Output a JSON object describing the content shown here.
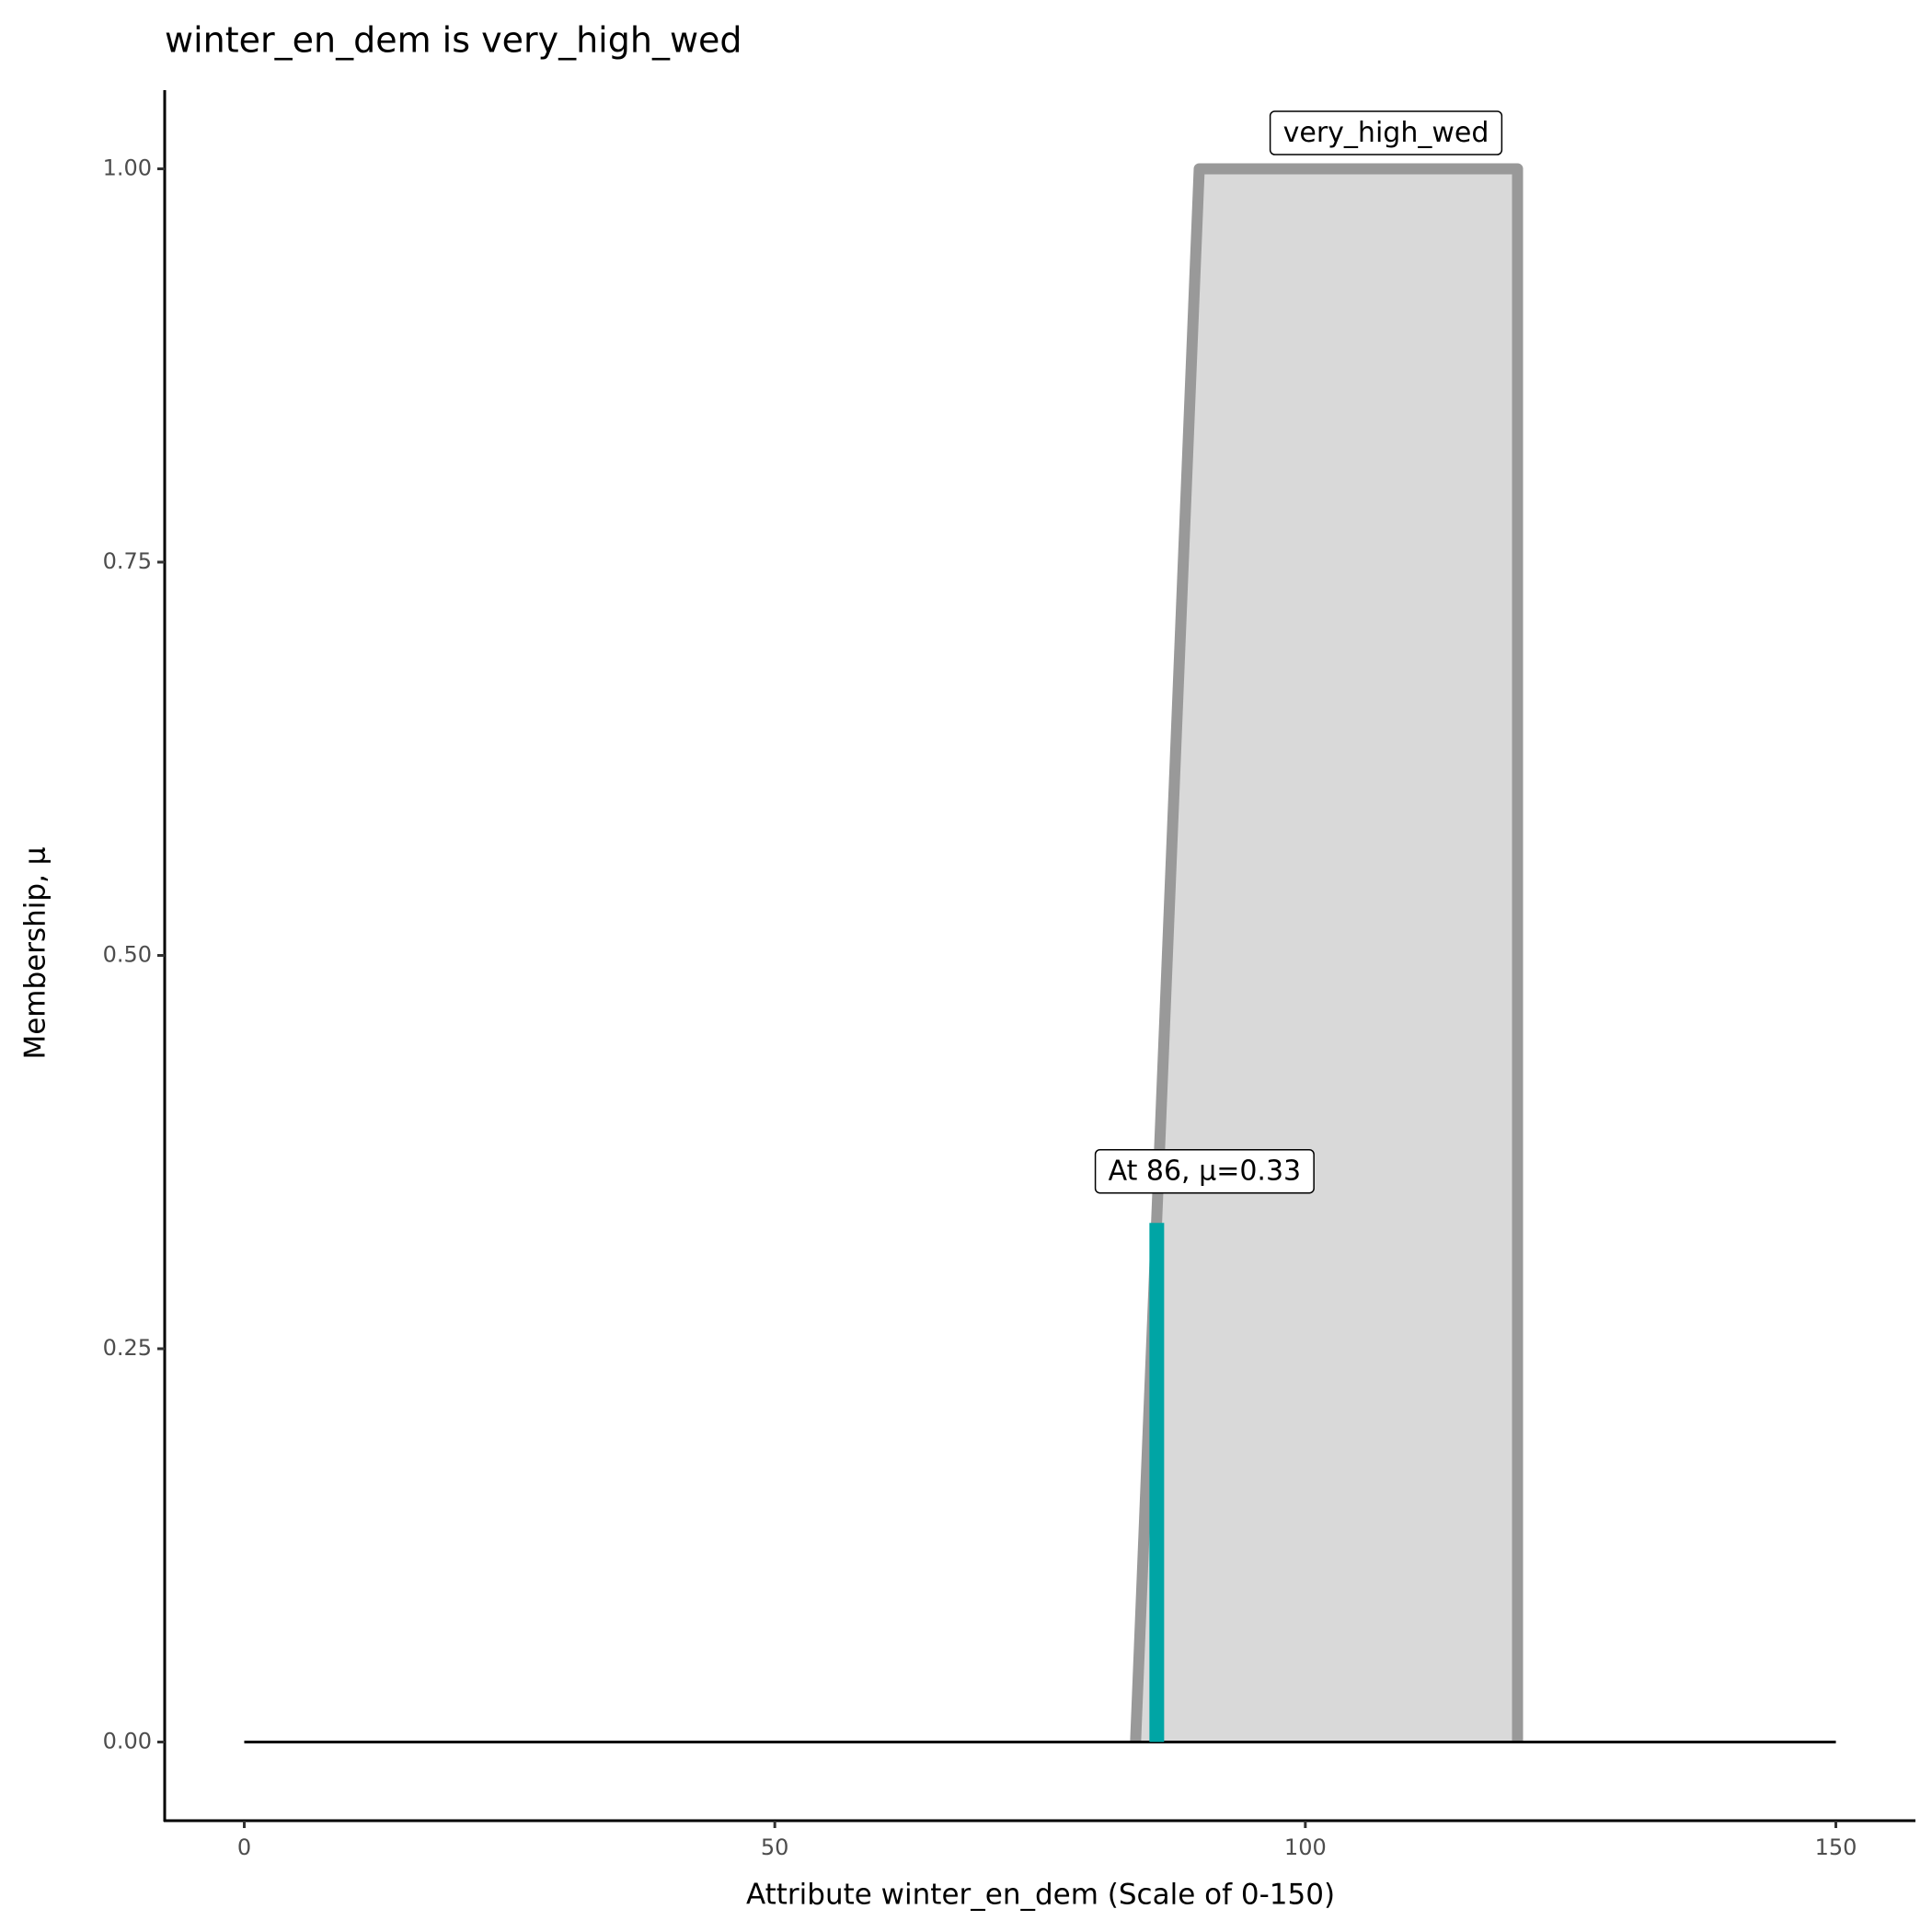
{
  "chart_data": {
    "type": "area",
    "title": "winter_en_dem is very_high_wed",
    "x_label": "Attribute winter_en_dem (Scale of 0-150)",
    "y_label": "Membership, μ",
    "xlim": [
      -7.5,
      157.5
    ],
    "ylim": [
      -0.05,
      1.05
    ],
    "xticks": [
      0,
      50,
      100,
      150
    ],
    "yticks": [
      {
        "value": 0,
        "label": "0.00"
      },
      {
        "value": 0.25,
        "label": "0.25"
      },
      {
        "value": 0.5,
        "label": "0.50"
      },
      {
        "value": 0.75,
        "label": "0.75"
      },
      {
        "value": 1,
        "label": "1.00"
      }
    ],
    "series": [
      {
        "name": "very_high_wed",
        "color": "#999999",
        "fill": "#d9d9d9",
        "x": [
          84,
          90,
          120,
          120
        ],
        "values": [
          0,
          1,
          1,
          0
        ]
      }
    ],
    "baseline": {
      "color": "#000000",
      "x": [
        0,
        150
      ],
      "values": [
        0,
        0
      ]
    },
    "marker": {
      "label": "At 86, μ=0.33",
      "color": "#00a5a5",
      "x": 86,
      "value": 0.33
    }
  }
}
